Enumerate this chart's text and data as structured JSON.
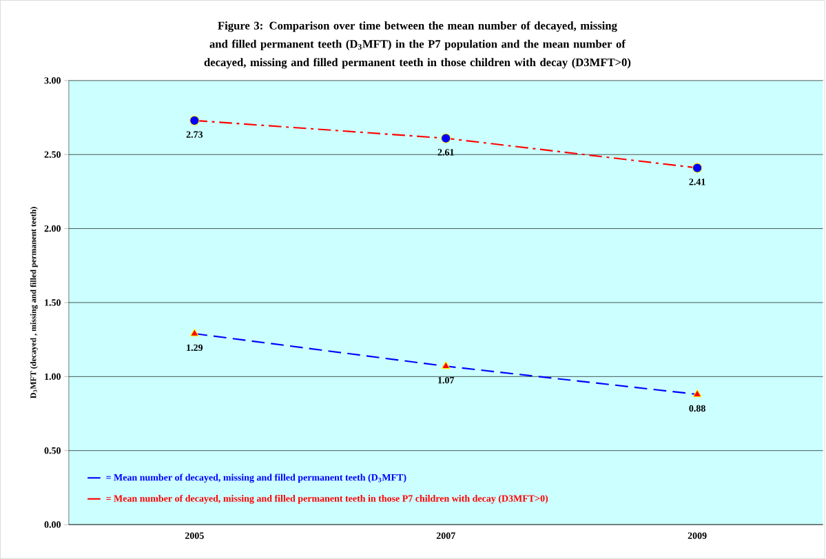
{
  "chart_data": {
    "type": "line",
    "title": "Figure 3: Comparison over time between the mean number of decayed, missing and filled permanent teeth (D$_{3}$MFT) in the P7 population and the mean number of decayed, missing and filled permanent teeth in those children with decay (D3MFT>0)",
    "ylabel": "D$_{3}$MFT (decayed , missing and filled permanent teeth)",
    "categories": [
      "2005",
      "2007",
      "2009"
    ],
    "series": [
      {
        "name": "= Mean number of decayed, missing and filled permanent teeth (D$_{3}$MFT)",
        "color": "#0000ff",
        "line_style": "dashed",
        "marker": "triangle",
        "values": [
          1.29,
          1.07,
          0.88
        ]
      },
      {
        "name": "= Mean number of decayed, missing and filled permanent teeth in those P7 children with decay (D3MFT>0)",
        "color": "#ff0000",
        "line_style": "dashdot",
        "marker": "circle",
        "values": [
          2.73,
          2.61,
          2.41
        ]
      }
    ],
    "ylim": [
      0,
      3
    ],
    "yticks": [
      {
        "value": 0,
        "label": "0.00"
      },
      {
        "value": 0.5,
        "label": "0.50"
      },
      {
        "value": 1,
        "label": "1.00"
      },
      {
        "value": 1.5,
        "label": "1.50"
      },
      {
        "value": 2,
        "label": "2.00"
      },
      {
        "value": 2.5,
        "label": "2.50"
      },
      {
        "value": 3,
        "label": "3.00"
      }
    ],
    "grid": "y",
    "legend": "bottom left",
    "data_labels": true
  }
}
